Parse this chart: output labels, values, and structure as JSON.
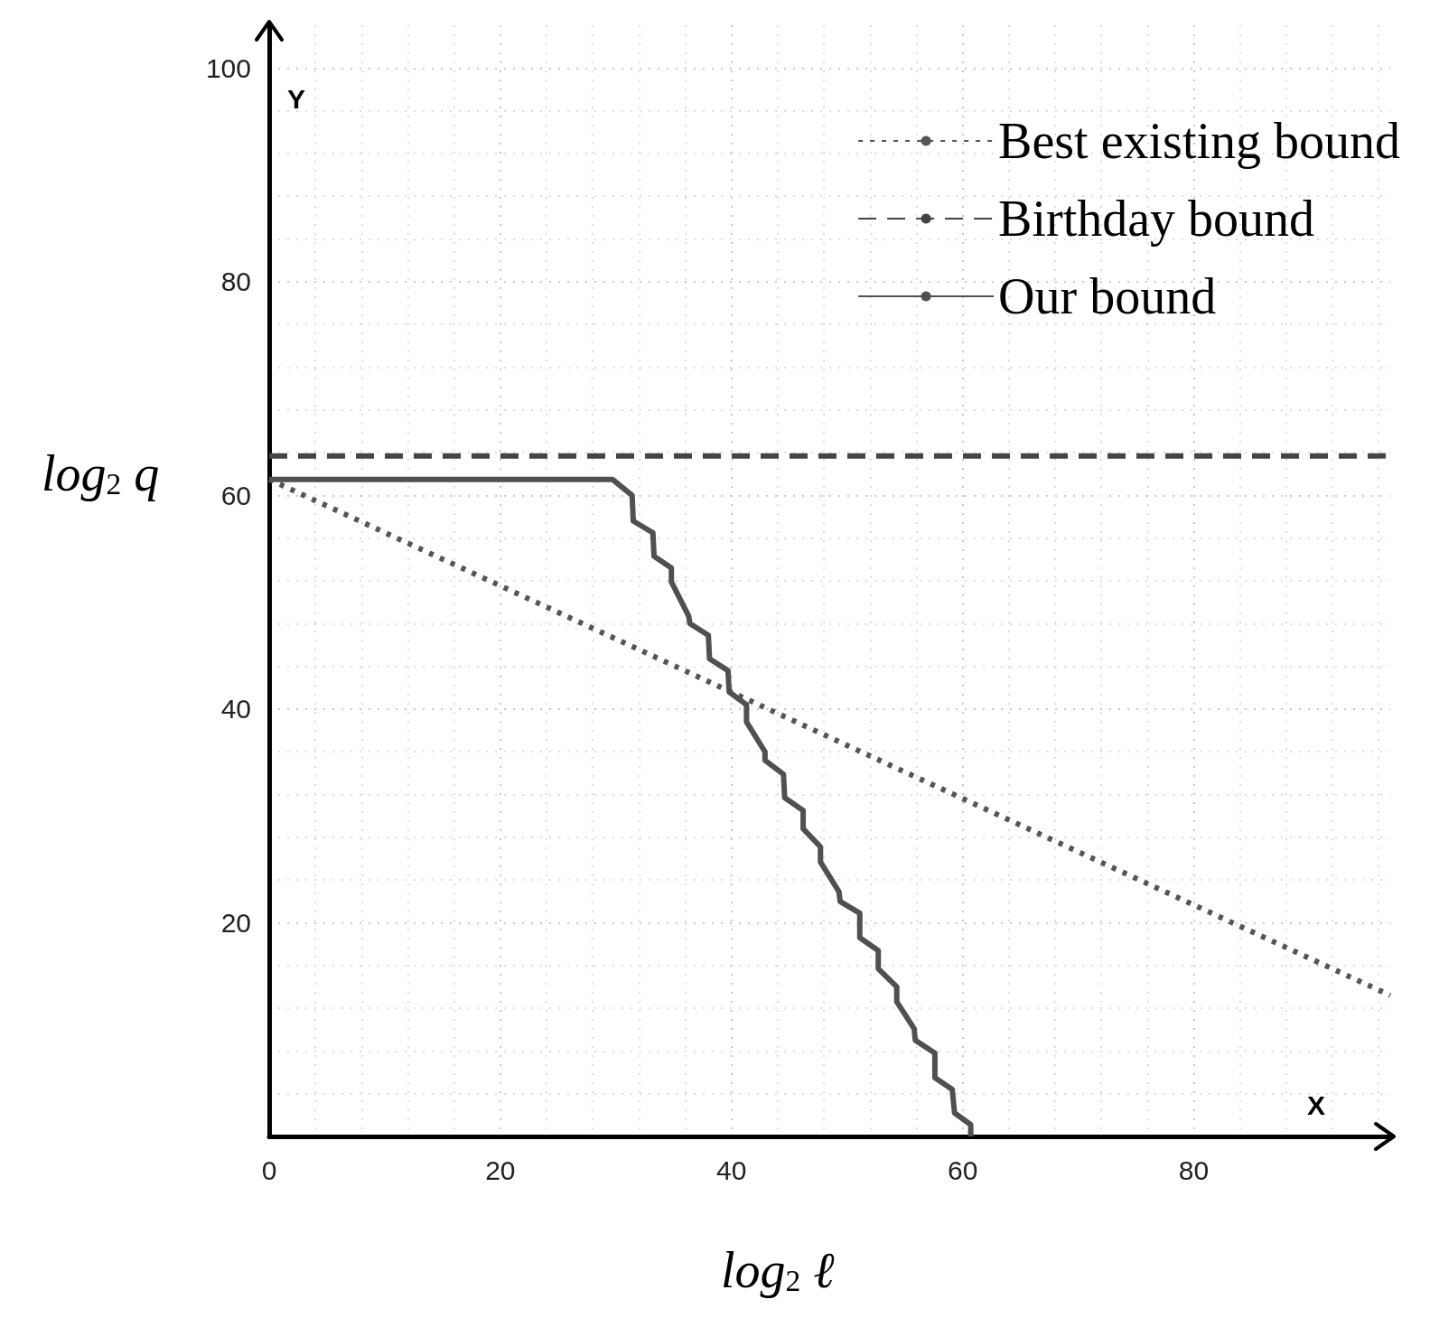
{
  "chart_data": {
    "type": "line",
    "xlabel": "log$_{2}$ ℓ",
    "ylabel": "log$_{2}$ q",
    "xlim": [
      0,
      97
    ],
    "ylim": [
      0,
      104
    ],
    "xticks": [
      0,
      20,
      40,
      60,
      80
    ],
    "yticks": [
      20,
      40,
      60,
      80,
      100
    ],
    "grid": true,
    "legend": "top right",
    "marker": "none",
    "annotations": [
      "X",
      "Y"
    ],
    "series": [
      {
        "name": "Best existing bound",
        "color": "#555555",
        "line_style": "dotted",
        "x": [
          0,
          97
        ],
        "values": [
          61.5,
          13.2
        ]
      },
      {
        "name": "Birthday bound",
        "color": "#444444",
        "line_style": "dashed",
        "x": [
          0,
          97
        ],
        "values": [
          63.7,
          63.7
        ]
      },
      {
        "name": "Our bound",
        "color": "#505050",
        "line_style": "solid",
        "x": [
          0,
          29.7,
          31.4,
          31.5,
          33.2,
          33.3,
          34.8,
          34.8,
          36.3,
          36.4,
          38.0,
          38.1,
          39.7,
          39.8,
          41.3,
          41.3,
          42.9,
          42.9,
          44.5,
          44.6,
          46.2,
          46.2,
          47.7,
          47.7,
          49.3,
          49.4,
          51.1,
          51.1,
          52.7,
          52.7,
          54.3,
          54.3,
          55.8,
          55.9,
          57.6,
          57.6,
          59.1,
          59.3,
          60.7,
          60.7
        ],
        "values": [
          61.5,
          61.5,
          60.0,
          57.6,
          56.5,
          54.3,
          53.2,
          51.9,
          48.7,
          48.0,
          46.9,
          44.7,
          43.6,
          41.6,
          40.4,
          38.8,
          36.0,
          35.2,
          33.9,
          31.7,
          30.5,
          28.8,
          27.1,
          25.7,
          22.9,
          22.0,
          20.9,
          18.6,
          17.4,
          15.7,
          14.0,
          12.6,
          10.1,
          9.0,
          7.8,
          5.5,
          4.4,
          2.2,
          1.1,
          0
        ]
      }
    ]
  }
}
